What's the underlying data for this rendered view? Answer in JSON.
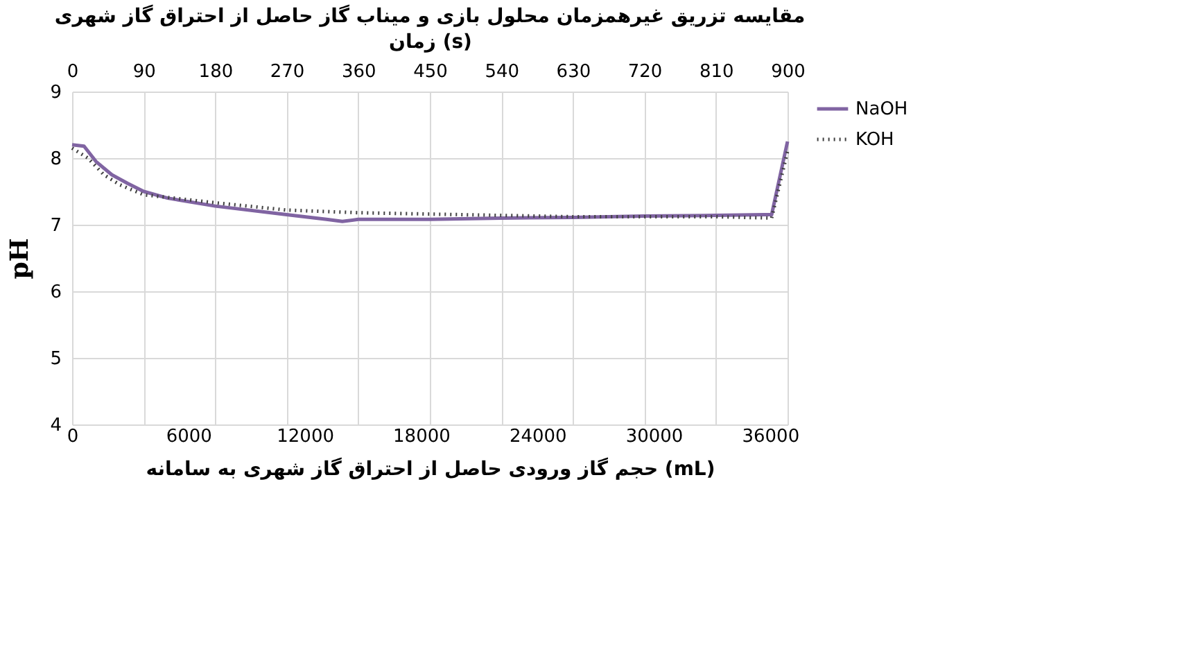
{
  "chart_data": {
    "type": "line",
    "title": "مقایسه تزریق غیرهمزمان محلول بازی و میناب گاز حاصل از احتراق گاز شهری",
    "xlabel": "حجم گاز ورودی حاصل از احتراق گاز شهری به سامانه (mL)",
    "x2label": "زمان (s)",
    "ylabel": "pH",
    "xlim": [
      0,
      36900
    ],
    "xticks": [
      0,
      6000,
      12000,
      18000,
      24000,
      30000,
      36000
    ],
    "x2lim": [
      0,
      900
    ],
    "x2ticks": [
      0,
      90,
      180,
      270,
      360,
      450,
      540,
      630,
      720,
      810,
      900
    ],
    "ylim": [
      4,
      9
    ],
    "yticks": [
      4,
      5,
      6,
      7,
      8,
      9
    ],
    "grid": true,
    "legend": "right",
    "series": [
      {
        "name": "NaOH",
        "color": "#8064a2",
        "line_style": "solid",
        "x": [
          0,
          615,
          1230,
          2050,
          2870,
          3690,
          4920,
          7380,
          11070,
          13120,
          13940,
          14760,
          18450,
          22140,
          25830,
          29520,
          33210,
          35670,
          36080,
          36900
        ],
        "values": [
          8.2,
          8.18,
          7.95,
          7.75,
          7.62,
          7.5,
          7.4,
          7.28,
          7.15,
          7.08,
          7.05,
          7.08,
          7.08,
          7.1,
          7.11,
          7.13,
          7.14,
          7.15,
          7.15,
          8.25
        ]
      },
      {
        "name": "KOH",
        "color": "#404040",
        "line_style": "dotted",
        "x": [
          0,
          820,
          1640,
          2460,
          3690,
          7380,
          11070,
          14760,
          18450,
          22140,
          25830,
          29520,
          33210,
          36080,
          36900
        ],
        "values": [
          8.15,
          8.0,
          7.75,
          7.6,
          7.45,
          7.33,
          7.22,
          7.18,
          7.16,
          7.14,
          7.12,
          7.12,
          7.12,
          7.1,
          8.1
        ]
      }
    ]
  }
}
